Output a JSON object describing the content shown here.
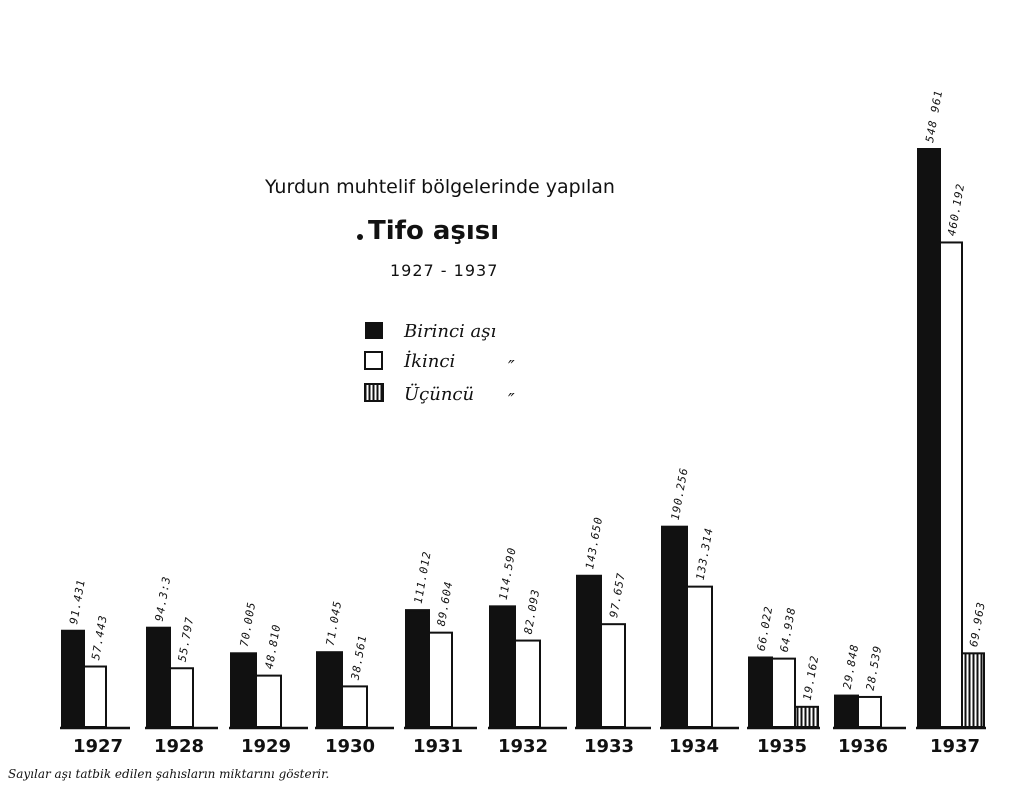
{
  "chart_data": {
    "type": "bar",
    "title": "Yurdun muhtelif bölgelerinde yapılan",
    "subtitle": "Tifo aşısı",
    "period": "1927 - 1937",
    "categories": [
      "1927",
      "1928",
      "1929",
      "1930",
      "1931",
      "1932",
      "1933",
      "1934",
      "1935",
      "1936",
      "1937"
    ],
    "series": [
      {
        "name": "Birinci aşı",
        "color": "#111111",
        "values": [
          91431,
          94313,
          70005,
          71045,
          111012,
          114590,
          143650,
          190256,
          66022,
          29848,
          548961
        ],
        "labels": [
          "91.431",
          "94.3:3",
          "70.005",
          "71.045",
          "111.012",
          "114.590",
          "143.650",
          "190.256",
          "66.022",
          "29.848",
          "548 961"
        ]
      },
      {
        "name": "İkinci",
        "color": "#ffffff",
        "values": [
          57443,
          55797,
          48810,
          38561,
          89604,
          82093,
          97657,
          133314,
          64938,
          28539,
          460192
        ],
        "labels": [
          "57.443",
          "55.797",
          "48.810",
          "38.561",
          "89.604",
          "82.093",
          "97.657",
          "133.314",
          "64.938",
          "28.539",
          "460.192"
        ]
      },
      {
        "name": "Üçüncü",
        "color": "hatched",
        "values": [
          null,
          null,
          null,
          null,
          null,
          null,
          null,
          null,
          19162,
          null,
          69963
        ],
        "labels": [
          "",
          "",
          "",
          "",
          "",
          "",
          "",
          "",
          "19.162",
          "",
          "69.963"
        ]
      }
    ],
    "legend": [
      "Birinci aşı",
      "İkinci",
      "Üçüncü"
    ],
    "legend_marks": [
      "″",
      "″"
    ],
    "footnote": "Sayılar aşı tatbik edilen şahısların miktarını gösterir.",
    "ylim": [
      0,
      560000
    ],
    "grid": false,
    "legend_position": "center-left"
  }
}
